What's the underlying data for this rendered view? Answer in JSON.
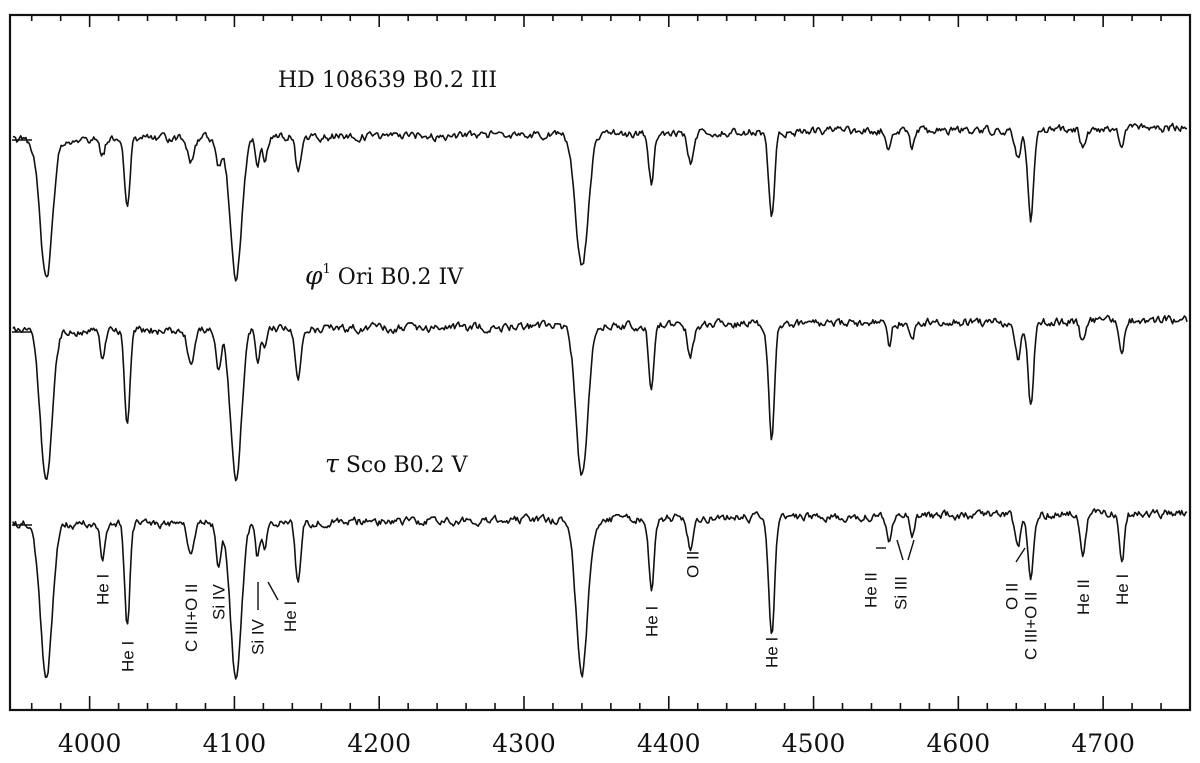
{
  "chart_data": {
    "type": "line",
    "title": "",
    "xlabel": "",
    "ylabel": "",
    "xlim": [
      3945,
      4760
    ],
    "x_ticks": [
      4000,
      4100,
      4200,
      4300,
      4400,
      4500,
      4600,
      4700
    ],
    "x_tick_labels": [
      "4000",
      "4100",
      "4200",
      "4300",
      "4400",
      "4500",
      "4600",
      "4700"
    ],
    "grid": false,
    "series": [
      {
        "name": "HD 108639  B0.2 III",
        "label_parts": {
          "main": "HD 108639  B0.2 III"
        },
        "continuum_start": 0.0,
        "continuum_end": 0.1,
        "lines": [
          {
            "x": 3970,
            "depth": 1.0,
            "width": 4.2
          },
          {
            "x": 4009,
            "depth": 0.12,
            "width": 1.6
          },
          {
            "x": 4026,
            "depth": 0.5,
            "width": 1.8
          },
          {
            "x": 4070,
            "depth": 0.18,
            "width": 2.2
          },
          {
            "x": 4089,
            "depth": 0.2,
            "width": 1.6
          },
          {
            "x": 4101,
            "depth": 1.0,
            "width": 4.0
          },
          {
            "x": 4116,
            "depth": 0.2,
            "width": 1.5
          },
          {
            "x": 4121,
            "depth": 0.15,
            "width": 1.5
          },
          {
            "x": 4144,
            "depth": 0.25,
            "width": 1.8
          },
          {
            "x": 4340,
            "depth": 0.95,
            "width": 4.2
          },
          {
            "x": 4388,
            "depth": 0.35,
            "width": 1.8
          },
          {
            "x": 4415,
            "depth": 0.2,
            "width": 2.0
          },
          {
            "x": 4471,
            "depth": 0.6,
            "width": 2.0
          },
          {
            "x": 4552,
            "depth": 0.15,
            "width": 1.5
          },
          {
            "x": 4568,
            "depth": 0.12,
            "width": 1.5
          },
          {
            "x": 4641,
            "depth": 0.2,
            "width": 2.0
          },
          {
            "x": 4650,
            "depth": 0.65,
            "width": 2.0
          },
          {
            "x": 4686,
            "depth": 0.12,
            "width": 1.8
          },
          {
            "x": 4713,
            "depth": 0.15,
            "width": 1.6
          }
        ]
      },
      {
        "name": "φ1 Ori  B0.2 IV",
        "label_parts": {
          "symbol": "φ",
          "sup": "1",
          "rest": " Ori  B0.2 IV"
        },
        "continuum_start": 0.0,
        "continuum_end": 0.1,
        "lines": [
          {
            "x": 3970,
            "depth": 1.0,
            "width": 4.0
          },
          {
            "x": 4009,
            "depth": 0.2,
            "width": 1.6
          },
          {
            "x": 4026,
            "depth": 0.62,
            "width": 1.8
          },
          {
            "x": 4070,
            "depth": 0.25,
            "width": 2.2
          },
          {
            "x": 4089,
            "depth": 0.25,
            "width": 1.6
          },
          {
            "x": 4101,
            "depth": 1.0,
            "width": 3.8
          },
          {
            "x": 4116,
            "depth": 0.2,
            "width": 1.5
          },
          {
            "x": 4121,
            "depth": 0.15,
            "width": 1.5
          },
          {
            "x": 4144,
            "depth": 0.35,
            "width": 1.8
          },
          {
            "x": 4340,
            "depth": 1.0,
            "width": 4.0
          },
          {
            "x": 4388,
            "depth": 0.42,
            "width": 1.8
          },
          {
            "x": 4415,
            "depth": 0.2,
            "width": 2.0
          },
          {
            "x": 4471,
            "depth": 0.75,
            "width": 2.0
          },
          {
            "x": 4552,
            "depth": 0.15,
            "width": 1.5
          },
          {
            "x": 4568,
            "depth": 0.12,
            "width": 1.5
          },
          {
            "x": 4641,
            "depth": 0.25,
            "width": 2.0
          },
          {
            "x": 4650,
            "depth": 0.55,
            "width": 2.0
          },
          {
            "x": 4686,
            "depth": 0.15,
            "width": 1.8
          },
          {
            "x": 4713,
            "depth": 0.22,
            "width": 1.6
          }
        ]
      },
      {
        "name": "τ Sco  B0.2 V",
        "label_parts": {
          "symbol": "τ",
          "rest": " Sco  B0.2 V"
        },
        "continuum_start": 0.0,
        "continuum_end": 0.1,
        "lines": [
          {
            "x": 3970,
            "depth": 1.0,
            "width": 4.0
          },
          {
            "x": 4009,
            "depth": 0.25,
            "width": 1.6
          },
          {
            "x": 4026,
            "depth": 0.65,
            "width": 1.8
          },
          {
            "x": 4070,
            "depth": 0.18,
            "width": 2.2
          },
          {
            "x": 4089,
            "depth": 0.25,
            "width": 1.6
          },
          {
            "x": 4101,
            "depth": 1.0,
            "width": 3.8
          },
          {
            "x": 4116,
            "depth": 0.22,
            "width": 1.5
          },
          {
            "x": 4121,
            "depth": 0.18,
            "width": 1.5
          },
          {
            "x": 4144,
            "depth": 0.4,
            "width": 1.8
          },
          {
            "x": 4340,
            "depth": 1.0,
            "width": 4.0
          },
          {
            "x": 4388,
            "depth": 0.45,
            "width": 1.8
          },
          {
            "x": 4415,
            "depth": 0.2,
            "width": 2.0
          },
          {
            "x": 4471,
            "depth": 0.78,
            "width": 2.0
          },
          {
            "x": 4552,
            "depth": 0.15,
            "width": 1.5
          },
          {
            "x": 4568,
            "depth": 0.12,
            "width": 1.5
          },
          {
            "x": 4641,
            "depth": 0.2,
            "width": 2.0
          },
          {
            "x": 4650,
            "depth": 0.4,
            "width": 2.0
          },
          {
            "x": 4686,
            "depth": 0.3,
            "width": 1.8
          },
          {
            "x": 4713,
            "depth": 0.3,
            "width": 1.6
          }
        ]
      }
    ],
    "annotations": [
      {
        "text": "He I",
        "x": 4009
      },
      {
        "text": "He I",
        "x": 4026
      },
      {
        "text": "C III+O II",
        "x": 4070
      },
      {
        "text": "Si IV",
        "x": 4089
      },
      {
        "text": "Si IV",
        "x": 4116
      },
      {
        "text": "He I",
        "x": 4144
      },
      {
        "text": "He I",
        "x": 4388
      },
      {
        "text": "O II",
        "x": 4415
      },
      {
        "text": "He I",
        "x": 4471
      },
      {
        "text": "He II",
        "x": 4542
      },
      {
        "text": "Si III",
        "x": 4560
      },
      {
        "text": "O II",
        "x": 4641
      },
      {
        "text": "C III+O II",
        "x": 4650
      },
      {
        "text": "He II",
        "x": 4686
      },
      {
        "text": "He I",
        "x": 4713
      }
    ]
  }
}
